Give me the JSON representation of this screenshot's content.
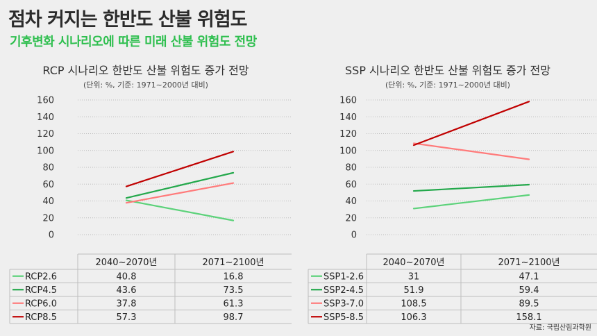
{
  "header": {
    "title": "점차 커지는 한반도 산불 위험도",
    "subtitle": "기후변화 시나리오에 따른 미래 산불 위험도 전망"
  },
  "source": "자료: 국립산림과학원",
  "colors": {
    "background": "#efefef",
    "title": "#2b2b2b",
    "subtitle": "#2fbf4f",
    "grid": "#bdbdbd",
    "series": [
      "#5cd27a",
      "#23a84b",
      "#ff7a7a",
      "#c00000"
    ]
  },
  "chart_data": [
    {
      "type": "line",
      "title": "RCP 시나리오 한반도 산불 위험도 증가 전망",
      "subtitle": "(단위: %, 기준: 1971~2000년 대비)",
      "categories": [
        "2040~2070년",
        "2071~2100년"
      ],
      "ylim": [
        0,
        160
      ],
      "yticks": [
        0,
        20,
        40,
        60,
        80,
        100,
        120,
        140,
        160
      ],
      "grid": true,
      "legend_position": "table-bottom",
      "series": [
        {
          "name": "RCP2.6",
          "values": [
            40.8,
            16.8
          ],
          "color": "#5cd27a",
          "labels": [
            "40.8",
            "16.8"
          ]
        },
        {
          "name": "RCP4.5",
          "values": [
            43.6,
            73.5
          ],
          "color": "#23a84b",
          "labels": [
            "43.6",
            "73.5"
          ]
        },
        {
          "name": "RCP6.0",
          "values": [
            37.8,
            61.3
          ],
          "color": "#ff7a7a",
          "labels": [
            "37.8",
            "61.3"
          ]
        },
        {
          "name": "RCP8.5",
          "values": [
            57.3,
            98.7
          ],
          "color": "#c00000",
          "labels": [
            "57.3",
            "98.7"
          ]
        }
      ]
    },
    {
      "type": "line",
      "title": "SSP 시나리오 한반도 산불 위험도 증가 전망",
      "subtitle": "(단위: %, 기준: 1971~2000년 대비)",
      "categories": [
        "2040~2070년",
        "2071~2100년"
      ],
      "ylim": [
        0,
        160
      ],
      "yticks": [
        0,
        20,
        40,
        60,
        80,
        100,
        120,
        140,
        160
      ],
      "grid": true,
      "legend_position": "table-bottom",
      "series": [
        {
          "name": "SSP1-2.6",
          "values": [
            31,
            47.1
          ],
          "color": "#5cd27a",
          "labels": [
            "31",
            "47.1"
          ]
        },
        {
          "name": "SSP2-4.5",
          "values": [
            51.9,
            59.4
          ],
          "color": "#23a84b",
          "labels": [
            "51.9",
            "59.4"
          ]
        },
        {
          "name": "SSP3-7.0",
          "values": [
            108.5,
            89.5
          ],
          "color": "#ff7a7a",
          "labels": [
            "108.5",
            "89.5"
          ]
        },
        {
          "name": "SSP5-8.5",
          "values": [
            106.3,
            158.1
          ],
          "color": "#c00000",
          "labels": [
            "106.3",
            "158.1"
          ]
        }
      ]
    }
  ]
}
